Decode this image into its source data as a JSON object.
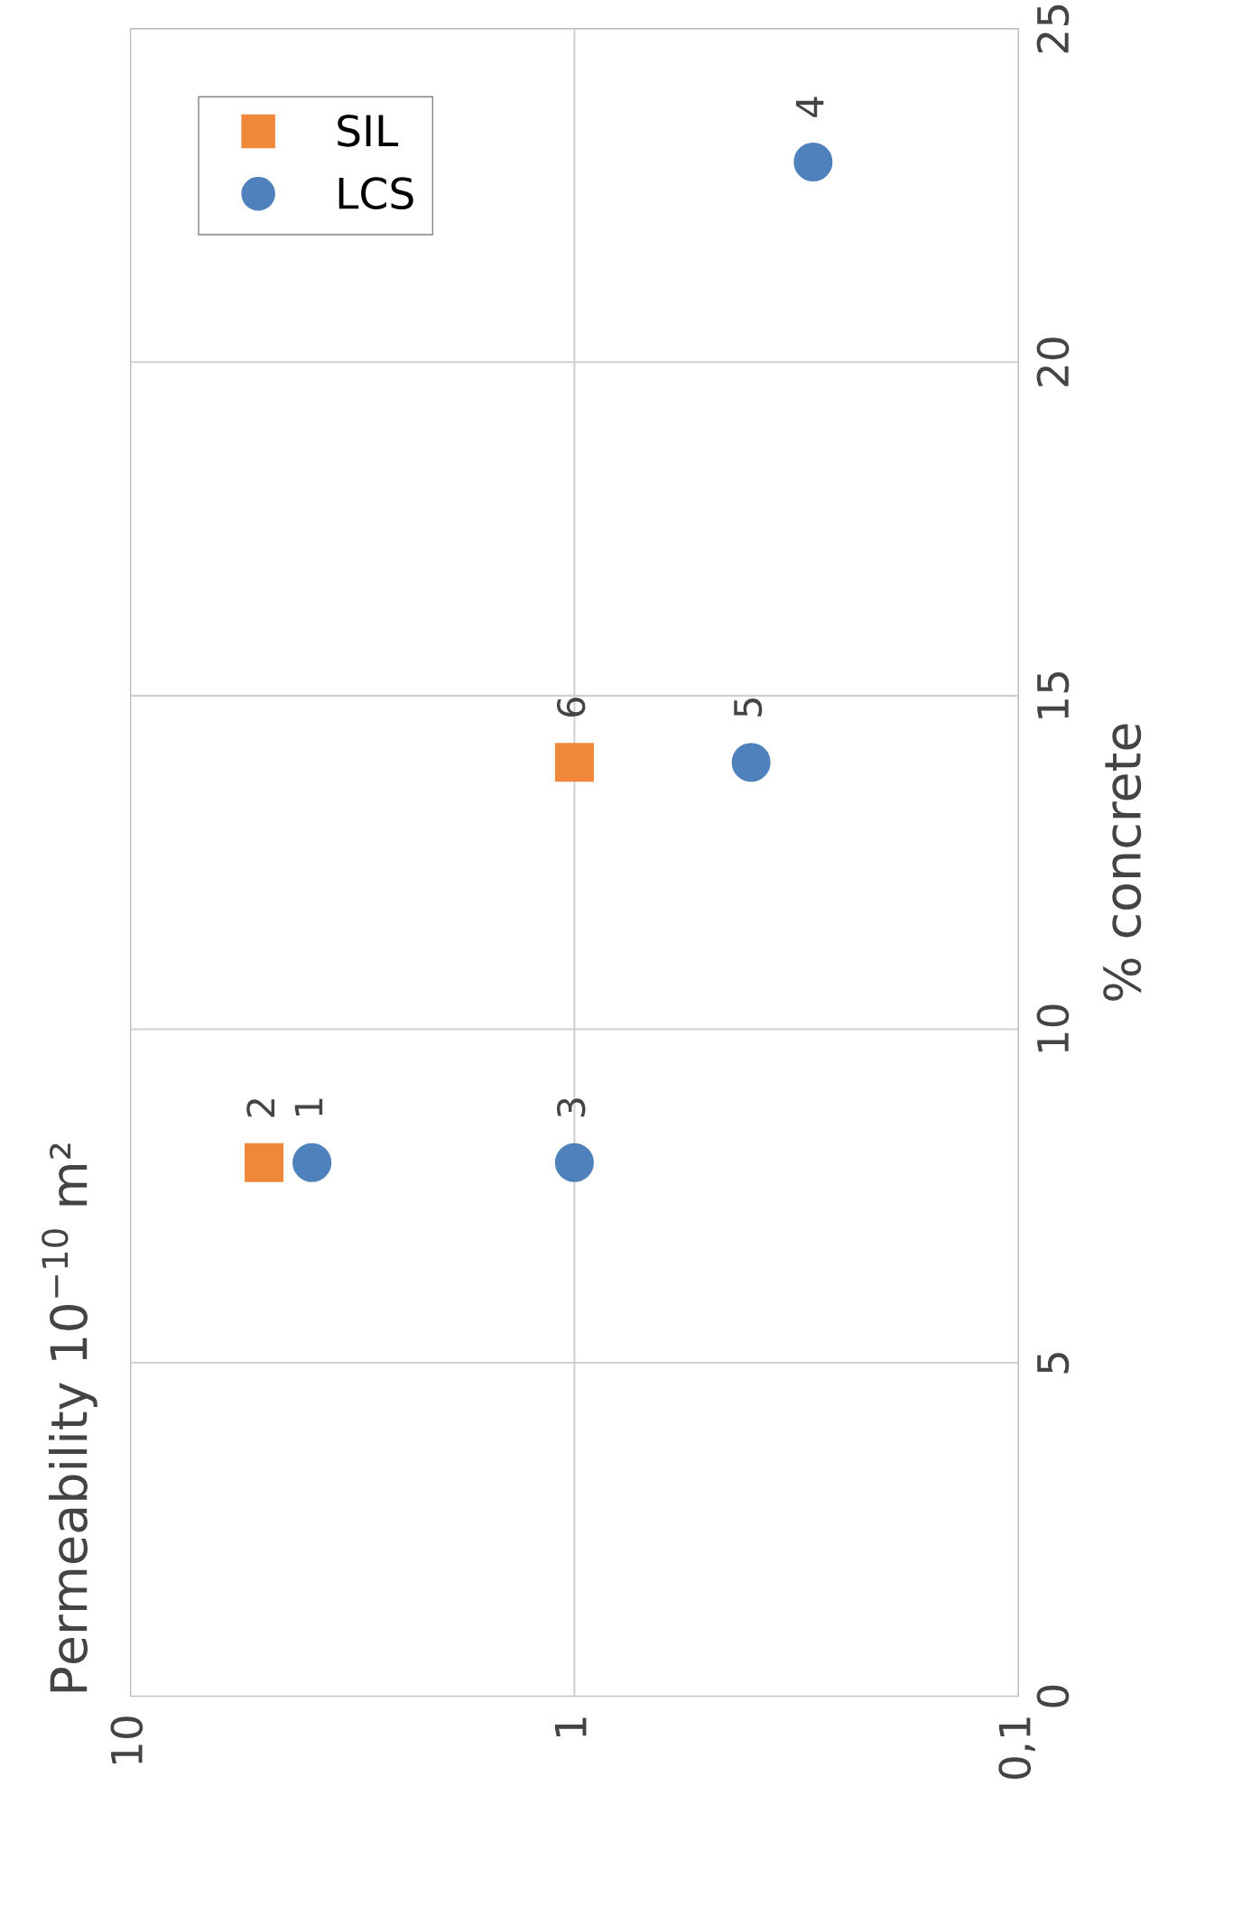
{
  "chart_data": {
    "type": "scatter",
    "ylabel": "% concrete",
    "series": [
      {
        "name": "LCS",
        "color": "#4f81bd",
        "marker": "circle",
        "x": [
          3.9,
          1.0,
          0.29,
          0.4
        ],
        "values": [
          8,
          8,
          23,
          14
        ]
      },
      {
        "name": "SIL",
        "color": "#f0883a",
        "marker": "square",
        "x": [
          5.0,
          1.0
        ],
        "values": [
          8,
          14
        ]
      }
    ],
    "annotations": [
      "Permeability 10$^{−10}$ m²",
      {
        "text": "1",
        "x": 3.9,
        "y": 8
      },
      {
        "text": "2",
        "x": 5.0,
        "y": 8
      },
      {
        "text": "3",
        "x": 1.0,
        "y": 8
      },
      {
        "text": "4",
        "x": 0.29,
        "y": 23
      },
      {
        "text": "5",
        "x": 0.4,
        "y": 14
      },
      {
        "text": "6",
        "x": 1.0,
        "y": 14
      }
    ],
    "ylim": [
      0,
      25
    ],
    "yticks": [
      0,
      5,
      10,
      15,
      20,
      25
    ],
    "xlim": [
      10,
      0.1
    ],
    "xticks": [
      {
        "value": 0.1,
        "label": "0,1"
      },
      1,
      10
    ],
    "log": "x",
    "grid": true,
    "legend": "top left"
  }
}
